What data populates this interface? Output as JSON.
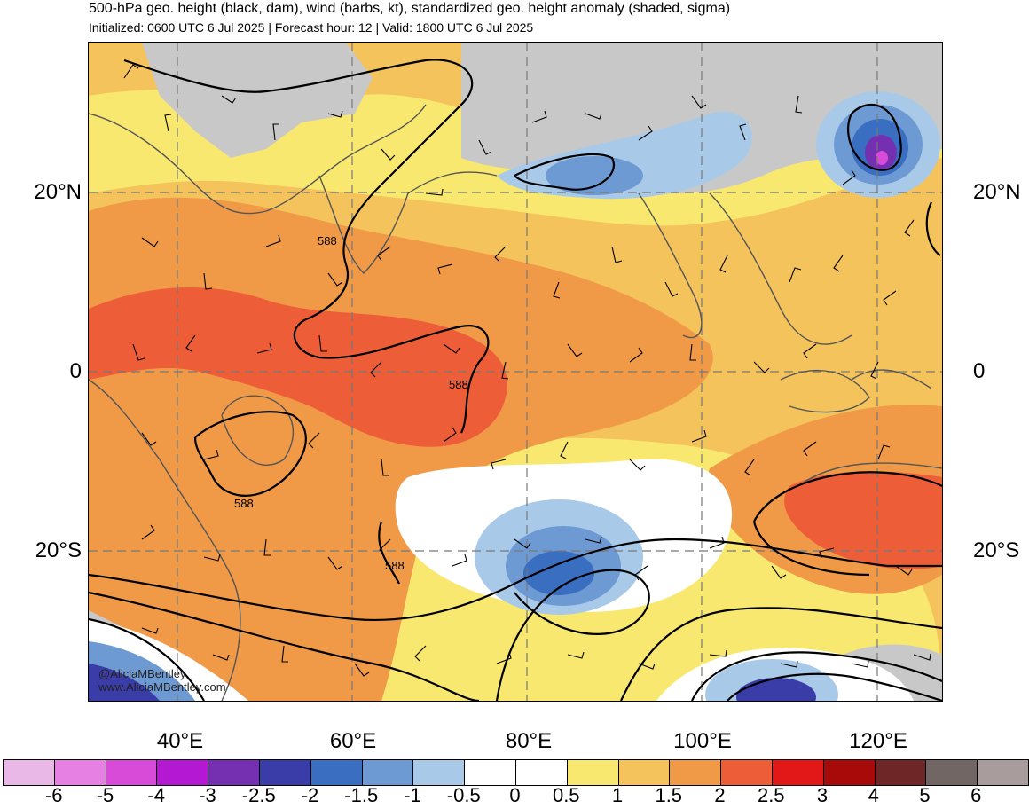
{
  "header": {
    "title": "500-hPa geo. height (black, dam), wind (barbs, kt), standardized geo. height anomaly (shaded, sigma)",
    "subtitle": "Initialized: 0600 UTC 6 Jul 2025 | Forecast hour: 12 | Valid: 1800 UTC 6 Jul 2025"
  },
  "axes": {
    "lat_labels": [
      "20°N",
      "0",
      "20°S"
    ],
    "lon_labels": [
      "40°E",
      "60°E",
      "80°E",
      "100°E",
      "120°E"
    ]
  },
  "contour_labels": [
    "588",
    "588",
    "588",
    "588"
  ],
  "colorbar": {
    "colors": [
      "#eab8e6",
      "#e680e2",
      "#d84ad8",
      "#b418d2",
      "#7430b0",
      "#3a3ca8",
      "#3a6ec0",
      "#6e9ad4",
      "#a8cae8",
      "#ffffff",
      "#ffffff",
      "#f8e870",
      "#f5c35c",
      "#f09a48",
      "#ed5e38",
      "#e21818",
      "#a80a0a",
      "#6e2626",
      "#716664",
      "#a89c9c"
    ],
    "labels": [
      "-6",
      "-5",
      "-4",
      "-3",
      "-2.5",
      "-2",
      "-1.5",
      "-1",
      "-0.5",
      "0",
      "0.5",
      "1",
      "1.5",
      "2",
      "2.5",
      "3",
      "4",
      "5",
      "6"
    ]
  },
  "credits": {
    "handle": "@AliciaMBentley",
    "site": "www.AliciaMBentley.com"
  }
}
